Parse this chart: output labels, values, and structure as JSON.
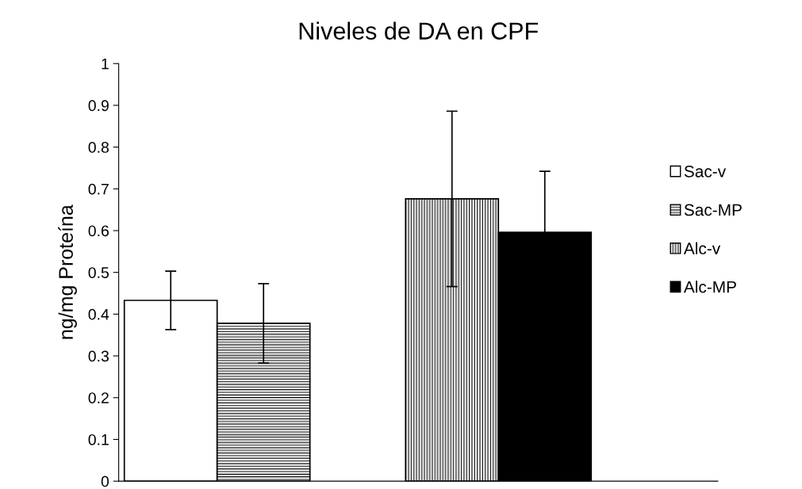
{
  "chart_data": {
    "type": "bar",
    "title": "Niveles de DA en CPF",
    "ylabel": "ng/mg Proteína",
    "categories": [
      null,
      null
    ],
    "series": [
      {
        "name": "Sac-v",
        "color": "#ffffff",
        "values": [
          0.433,
          null
        ],
        "errors": [
          0.07,
          null
        ]
      },
      {
        "name": "Sac-MP",
        "color": "#000000",
        "values": [
          0.378,
          null
        ],
        "errors": [
          0.095,
          null
        ]
      },
      {
        "name": "Alc-v",
        "color": "#000000",
        "values": [
          null,
          0.676
        ],
        "errors": [
          null,
          0.21
        ]
      },
      {
        "name": "Alc-MP",
        "color": "#000000",
        "values": [
          null,
          0.596
        ],
        "errors": [
          null,
          0.146
        ]
      }
    ],
    "ylim": [
      0,
      1
    ],
    "yticks": [
      0,
      0.1,
      0.2,
      0.3,
      0.4,
      0.5,
      0.6,
      0.7,
      0.8,
      0.9,
      1
    ],
    "tick_labels": "y",
    "grid": false,
    "legend": "right"
  }
}
